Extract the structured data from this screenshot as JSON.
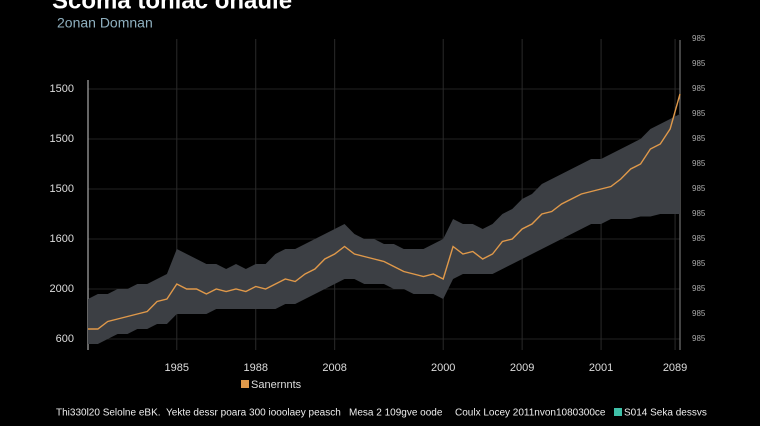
{
  "chart_data": {
    "type": "line",
    "title": "Scoma tonlac onaule",
    "subtitle": "2onan Domnan",
    "x": [
      0,
      1,
      2,
      3,
      4,
      5,
      6,
      7,
      8,
      9,
      10,
      11,
      12,
      13,
      14,
      15,
      16,
      17,
      18,
      19,
      20,
      21,
      22,
      23,
      24,
      25,
      26,
      27,
      28,
      29,
      30,
      31,
      32,
      33,
      34,
      35,
      36,
      37,
      38,
      39,
      40,
      41,
      42,
      43,
      44,
      45,
      46,
      47,
      48,
      49,
      50,
      51,
      52,
      53,
      54,
      55,
      56,
      57,
      58,
      59,
      60
    ],
    "xlim": [
      0,
      60
    ],
    "xticks": [
      {
        "value": 9,
        "label": "1985"
      },
      {
        "value": 17,
        "label": "1988"
      },
      {
        "value": 25,
        "label": "2008"
      },
      {
        "value": 36,
        "label": "2000"
      },
      {
        "value": 44,
        "label": "2009"
      },
      {
        "value": 52,
        "label": "2001"
      },
      {
        "value": 59.5,
        "label": "2089"
      }
    ],
    "ylim": [
      0,
      6
    ],
    "yticks": [
      {
        "value": 5,
        "label": "1500"
      },
      {
        "value": 4,
        "label": "1500"
      },
      {
        "value": 3,
        "label": "1500"
      },
      {
        "value": 2,
        "label": "1600"
      },
      {
        "value": 1,
        "label": "2000"
      },
      {
        "value": 0,
        "label": "600"
      }
    ],
    "y2lim": [
      0,
      12
    ],
    "y2ticks": [
      {
        "value": 12,
        "label": "985"
      },
      {
        "value": 11,
        "label": "985"
      },
      {
        "value": 10,
        "label": "985"
      },
      {
        "value": 9,
        "label": "985"
      },
      {
        "value": 8,
        "label": "985"
      },
      {
        "value": 7,
        "label": "985"
      },
      {
        "value": 6,
        "label": "985"
      },
      {
        "value": 5,
        "label": "985"
      },
      {
        "value": 4,
        "label": "985"
      },
      {
        "value": 3,
        "label": "985"
      },
      {
        "value": 2,
        "label": "985"
      },
      {
        "value": 1,
        "label": "985"
      },
      {
        "value": 0,
        "label": "985"
      }
    ],
    "grid": true,
    "series": [
      {
        "name": "Sanernnts",
        "color": "#e0994a",
        "values": [
          0.2,
          0.2,
          0.35,
          0.4,
          0.45,
          0.5,
          0.55,
          0.75,
          0.8,
          1.1,
          1.0,
          1.0,
          0.9,
          1.0,
          0.95,
          1.0,
          0.95,
          1.05,
          1.0,
          1.1,
          1.2,
          1.15,
          1.3,
          1.4,
          1.6,
          1.7,
          1.85,
          1.7,
          1.65,
          1.6,
          1.55,
          1.45,
          1.35,
          1.3,
          1.25,
          1.3,
          1.2,
          1.85,
          1.7,
          1.75,
          1.6,
          1.7,
          1.95,
          2.0,
          2.2,
          2.3,
          2.5,
          2.55,
          2.7,
          2.8,
          2.9,
          2.95,
          3.0,
          3.05,
          3.2,
          3.4,
          3.5,
          3.8,
          3.9,
          4.2,
          4.9
        ]
      }
    ],
    "band": {
      "color": "#3c3f44",
      "upper": [
        0.8,
        0.9,
        0.9,
        1.0,
        1.0,
        1.1,
        1.1,
        1.2,
        1.3,
        1.8,
        1.7,
        1.6,
        1.5,
        1.5,
        1.4,
        1.5,
        1.4,
        1.5,
        1.5,
        1.7,
        1.8,
        1.8,
        1.9,
        2.0,
        2.1,
        2.2,
        2.3,
        2.1,
        2.0,
        2.0,
        1.9,
        1.9,
        1.8,
        1.8,
        1.8,
        1.9,
        2.0,
        2.4,
        2.3,
        2.3,
        2.2,
        2.3,
        2.5,
        2.6,
        2.8,
        2.9,
        3.1,
        3.2,
        3.3,
        3.4,
        3.5,
        3.6,
        3.6,
        3.7,
        3.8,
        3.9,
        4.0,
        4.2,
        4.3,
        4.4,
        4.5
      ],
      "lower": [
        -0.1,
        -0.1,
        0,
        0.1,
        0.1,
        0.2,
        0.2,
        0.3,
        0.3,
        0.5,
        0.5,
        0.5,
        0.5,
        0.6,
        0.6,
        0.6,
        0.6,
        0.6,
        0.6,
        0.6,
        0.7,
        0.7,
        0.8,
        0.9,
        1.0,
        1.1,
        1.2,
        1.2,
        1.1,
        1.1,
        1.1,
        1.0,
        1.0,
        0.9,
        0.9,
        0.9,
        0.8,
        1.2,
        1.3,
        1.3,
        1.3,
        1.3,
        1.4,
        1.5,
        1.6,
        1.7,
        1.8,
        1.9,
        2.0,
        2.1,
        2.2,
        2.3,
        2.3,
        2.4,
        2.4,
        2.4,
        2.45,
        2.45,
        2.5,
        2.5,
        2.5
      ]
    },
    "footer": [
      "Thi330l20 Selolne eBK.",
      "Yekte dessr poara 300 iooolaey peasch",
      "Mesa 2 109gve oode",
      "Coulx Locey 2011nvon1080300ce",
      "S014 Seka dessvs"
    ]
  }
}
